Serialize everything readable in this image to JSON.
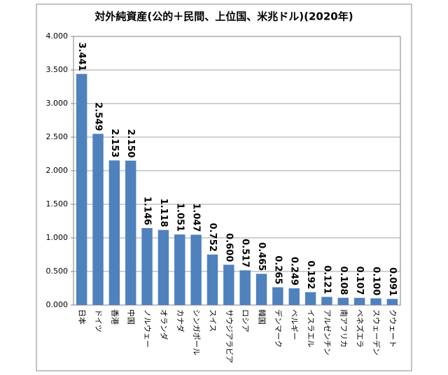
{
  "chart_data": {
    "type": "bar",
    "title": "対外純資産(公的＋民間、上位国、米兆ドル)(2020年)",
    "categories": [
      "日本",
      "ドイツ",
      "香港",
      "中国",
      "ノルウェー",
      "オランダ",
      "カナダ",
      "シンガポール",
      "スイス",
      "サウジアラビア",
      "ロシア",
      "韓国",
      "デンマーク",
      "ベルギー",
      "イスラエル",
      "アルゼンチン",
      "南アフリカ",
      "ベネズエラ",
      "スウェーデン",
      "クウェート"
    ],
    "values": [
      3.441,
      2.549,
      2.153,
      2.15,
      1.146,
      1.118,
      1.051,
      1.047,
      0.752,
      0.6,
      0.517,
      0.465,
      0.265,
      0.249,
      0.192,
      0.121,
      0.108,
      0.107,
      0.1,
      0.091
    ],
    "value_labels": [
      "3.441",
      "2.549",
      "2.153",
      "2.150",
      "1.146",
      "1.118",
      "1.051",
      "1.047",
      "0.752",
      "0.600",
      "0.517",
      "0.465",
      "0.265",
      "0.249",
      "0.192",
      "0.121",
      "0.108",
      "0.107",
      "0.100",
      "0.091"
    ],
    "color": "#4f81bd",
    "ylim": [
      0,
      4
    ],
    "yticks": [
      {
        "value": 0,
        "label": "0.000"
      },
      {
        "value": 0.5,
        "label": "0.500"
      },
      {
        "value": 1,
        "label": "1.000"
      },
      {
        "value": 1.5,
        "label": "1.500"
      },
      {
        "value": 2,
        "label": "2.000"
      },
      {
        "value": 2.5,
        "label": "2.500"
      },
      {
        "value": 3,
        "label": "3.000"
      },
      {
        "value": 3.5,
        "label": "3.500"
      },
      {
        "value": 4,
        "label": "4.000"
      }
    ],
    "grid": true
  }
}
